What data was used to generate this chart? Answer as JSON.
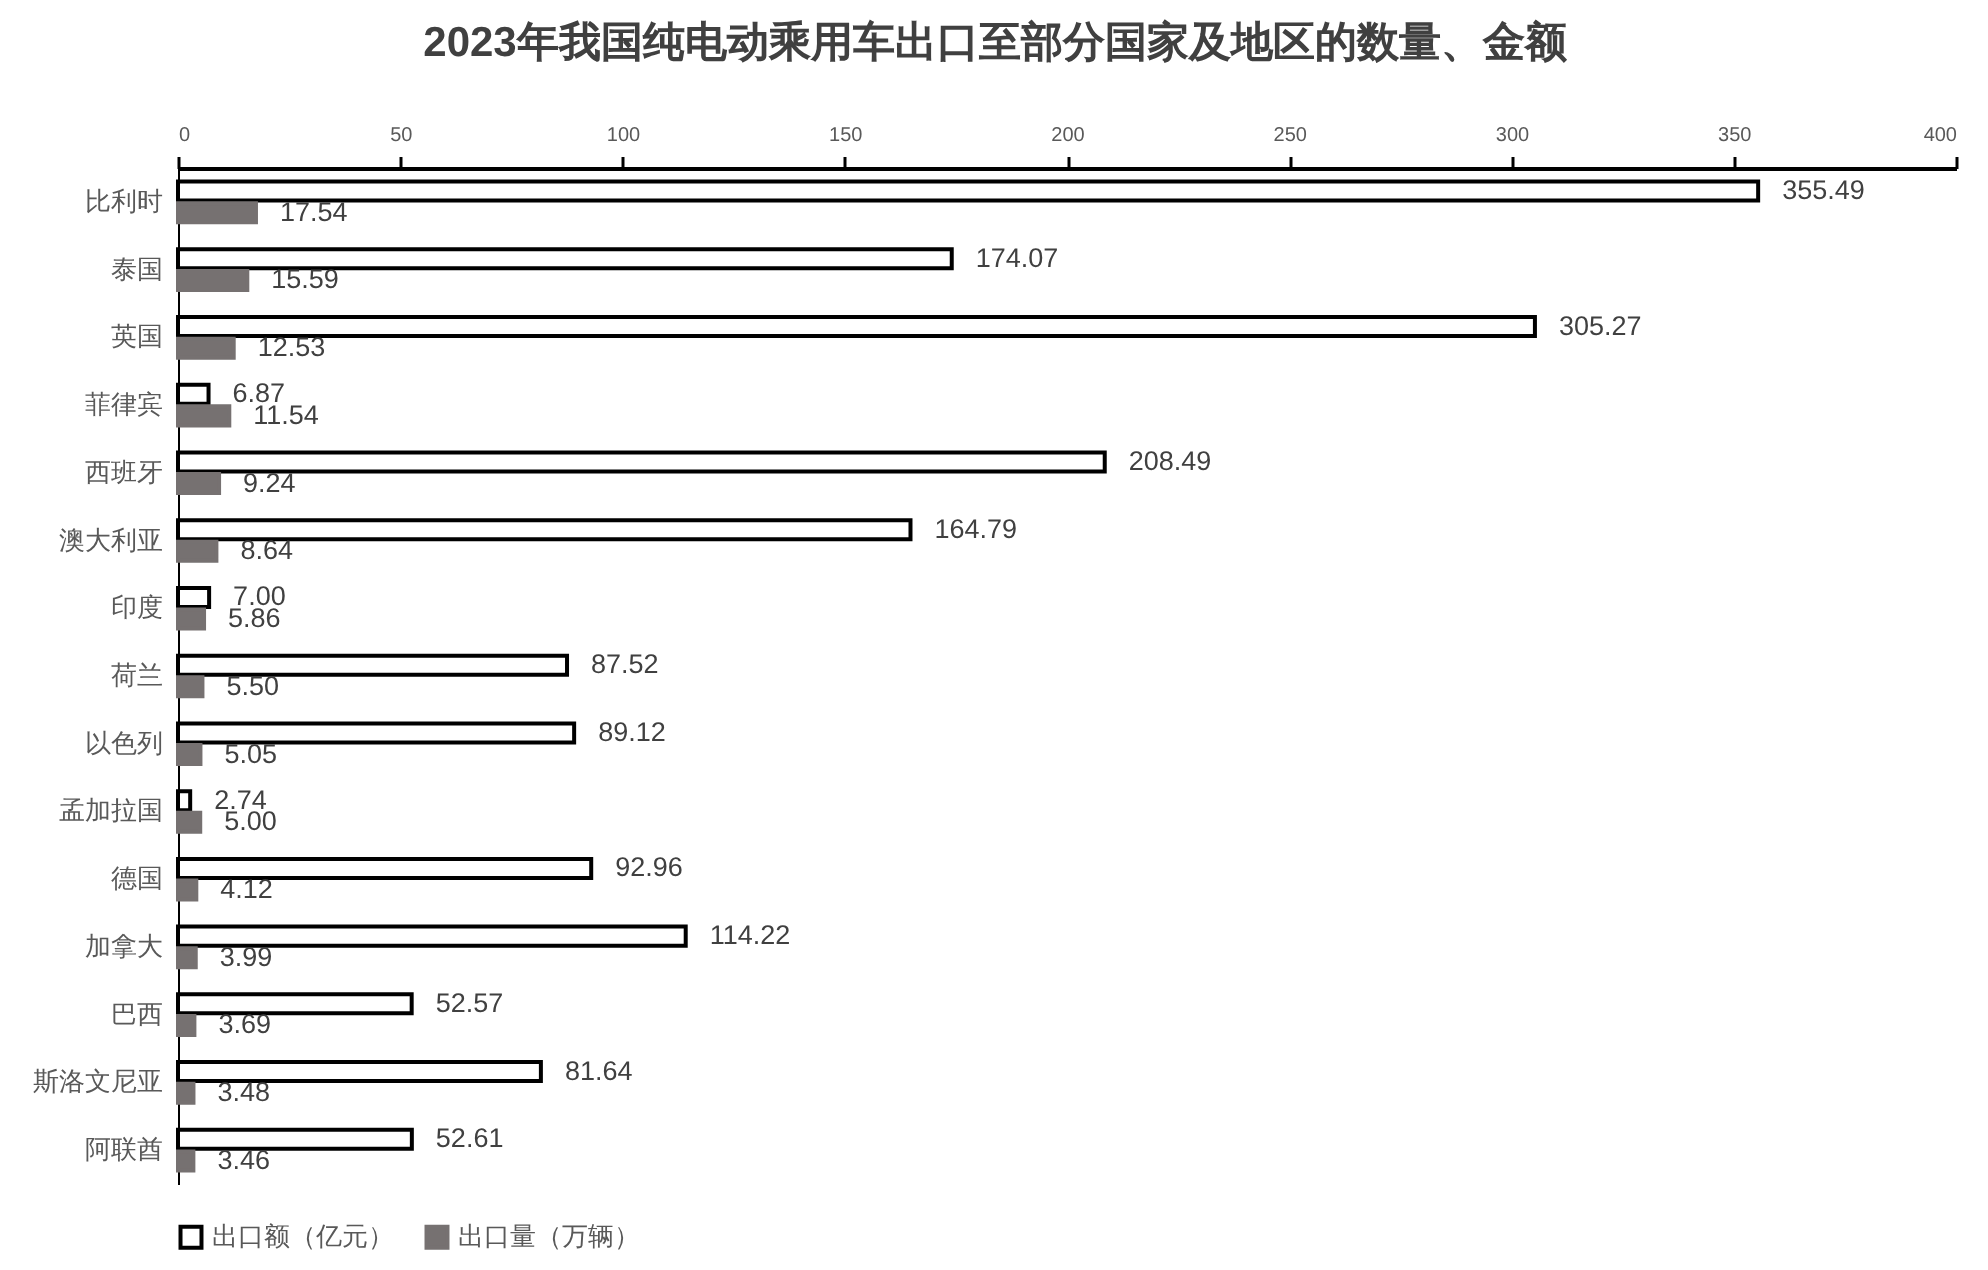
{
  "chart_data": {
    "type": "bar",
    "orientation": "horizontal",
    "title": "2023年我国纯电动乘用车出口至部分国家及地区的数量、金额",
    "categories": [
      "比利时",
      "泰国",
      "英国",
      "菲律宾",
      "西班牙",
      "澳大利亚",
      "印度",
      "荷兰",
      "以色列",
      "孟加拉国",
      "德国",
      "加拿大",
      "巴西",
      "斯洛文尼亚",
      "阿联酋"
    ],
    "series": [
      {
        "name": "出口额（亿元）",
        "color": "#ffffff",
        "values": [
          355.49,
          174.07,
          305.27,
          6.87,
          208.49,
          164.79,
          7.0,
          87.52,
          89.12,
          2.74,
          92.96,
          114.22,
          52.57,
          81.64,
          52.61
        ],
        "value_labels": [
          "355.49",
          "174.07",
          "305.27",
          "6.87",
          "208.49",
          "164.79",
          "7.00",
          "87.52",
          "89.12",
          "2.74",
          "92.96",
          "114.22",
          "52.57",
          "81.64",
          "52.61"
        ]
      },
      {
        "name": "出口量（万辆）",
        "color": "#767171",
        "values": [
          17.54,
          15.59,
          12.53,
          11.54,
          9.24,
          8.64,
          5.86,
          5.5,
          5.05,
          5.0,
          4.12,
          3.99,
          3.69,
          3.48,
          3.46
        ],
        "value_labels": [
          "17.54",
          "15.59",
          "12.53",
          "11.54",
          "9.24",
          "8.64",
          "5.86",
          "5.50",
          "5.05",
          "5.00",
          "4.12",
          "3.99",
          "3.69",
          "3.48",
          "3.46"
        ]
      }
    ],
    "xlim": [
      0,
      400
    ],
    "xticks": [
      0,
      50,
      100,
      150,
      200,
      250,
      300,
      350,
      400
    ],
    "legend": "bottom"
  }
}
